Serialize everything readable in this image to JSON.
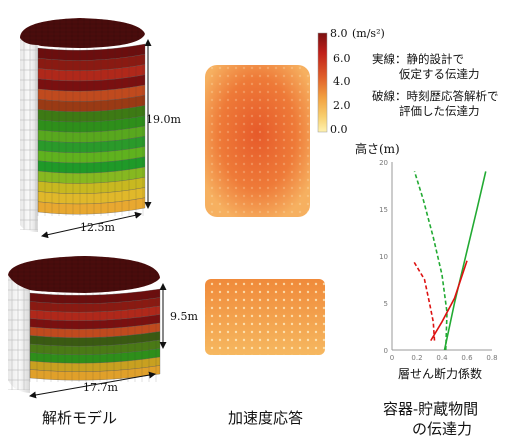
{
  "models": {
    "tall": {
      "height_label": "19.0m",
      "diameter_label": "12.5m"
    },
    "short": {
      "height_label": "9.5m",
      "diameter_label": "17.7m"
    },
    "caption": "解析モデル"
  },
  "colorbar": {
    "max_label": "8.0",
    "mid_upper_label": "6.0",
    "mid_label": "4.0",
    "mid_lower_label": "2.0",
    "min_label": "0.0",
    "unit_label": "(m/s²)",
    "colors": [
      "#7a1010",
      "#c0201a",
      "#e0602a",
      "#f2a040",
      "#f8d070",
      "#fff2b0"
    ]
  },
  "acceleration": {
    "caption": "加速度応答"
  },
  "legend": {
    "solid_line_1": "実線：静的設計で",
    "solid_line_2": "仮定する伝達力",
    "dashed_line_1": "破線：時刻歴応答解析で",
    "dashed_line_2": "評価した伝達力"
  },
  "chart_caption_1": "容器-貯蔵物間",
  "chart_caption_2": "の伝達力",
  "chart_data": {
    "type": "line",
    "ylabel": "高さ(m)",
    "xlabel": "層せん断力係数",
    "xlim": [
      0,
      0.8
    ],
    "ylim": [
      0,
      20
    ],
    "x_ticks": [
      "0",
      "0.2",
      "0.4",
      "0.6",
      "0.8"
    ],
    "y_ticks": [
      "0",
      "5",
      "10",
      "15",
      "20"
    ],
    "series": [
      {
        "color": "#22aa33",
        "style": "solid",
        "points": [
          [
            0.42,
            0
          ],
          [
            0.5,
            5
          ],
          [
            0.59,
            10
          ],
          [
            0.68,
            15
          ],
          [
            0.75,
            19
          ]
        ]
      },
      {
        "color": "#22aa33",
        "style": "dashed",
        "points": [
          [
            0.43,
            0
          ],
          [
            0.44,
            4
          ],
          [
            0.4,
            8
          ],
          [
            0.33,
            12
          ],
          [
            0.25,
            16
          ],
          [
            0.18,
            19
          ]
        ]
      },
      {
        "color": "#dd1111",
        "style": "solid",
        "points": [
          [
            0.31,
            1
          ],
          [
            0.4,
            3
          ],
          [
            0.5,
            5.5
          ],
          [
            0.6,
            9.5
          ]
        ]
      },
      {
        "color": "#dd1111",
        "style": "dashed",
        "points": [
          [
            0.34,
            1
          ],
          [
            0.33,
            3
          ],
          [
            0.3,
            5
          ],
          [
            0.26,
            7.5
          ],
          [
            0.17,
            9.5
          ]
        ]
      }
    ]
  }
}
